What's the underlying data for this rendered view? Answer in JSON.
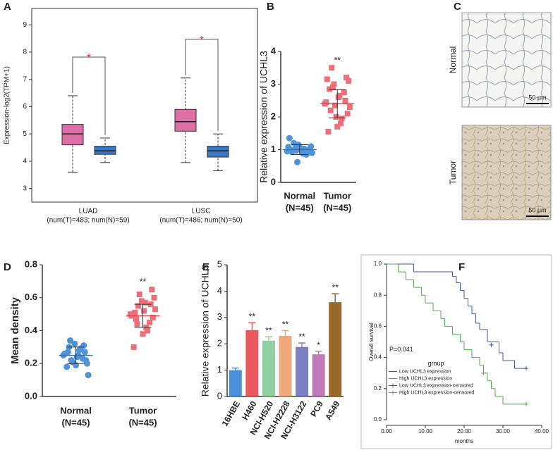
{
  "chart_data": [
    {
      "type": "box",
      "panel": "A",
      "ylabel": "Expression-log2(TPM+1)",
      "ylim": [
        2.5,
        9.6
      ],
      "yticks": [
        3,
        4,
        5,
        6,
        7,
        8,
        9
      ],
      "categories": [
        "LUAD",
        "LUSC"
      ],
      "category_labels": [
        "(num(T)=483; num(N)=59)",
        "(num(T)=486; num(N)=50)"
      ],
      "series": [
        {
          "color": "#dd6fa6",
          "boxes": [
            {
              "min": 3.6,
              "q1": 4.6,
              "median": 5.0,
              "q3": 5.35,
              "max": 6.4
            },
            {
              "min": 3.95,
              "q1": 5.1,
              "median": 5.45,
              "q3": 5.9,
              "max": 7.05
            }
          ]
        },
        {
          "color": "#3b78c2",
          "boxes": [
            {
              "min": 3.95,
              "q1": 4.25,
              "median": 4.38,
              "q3": 4.55,
              "max": 4.85
            },
            {
              "min": 3.65,
              "q1": 4.15,
              "median": 4.38,
              "q3": 4.55,
              "max": 5.0
            }
          ]
        }
      ],
      "annotations": [
        "*",
        "*"
      ],
      "annotation_color": "#e8303a"
    },
    {
      "type": "dot",
      "panel": "B",
      "ylabel": "Relative expression of UCHL3",
      "ylim": [
        0,
        4
      ],
      "yticks": [
        0,
        1,
        2,
        3,
        4
      ],
      "categories": [
        "Normal",
        "Tumor"
      ],
      "category_labels": [
        "(N=45)",
        "(N=45)"
      ],
      "series": [
        {
          "color": "#4f93d8",
          "mean": 1.0,
          "sd": 0.15,
          "points": [
            0.95,
            1.02,
            0.88,
            1.1,
            0.98,
            1.05,
            0.92,
            1.0,
            1.15,
            0.85,
            1.08,
            0.97,
            1.03,
            0.9,
            1.2,
            0.96,
            1.01,
            0.93,
            1.06,
            0.99,
            1.35,
            0.62
          ]
        },
        {
          "color": "#ef6f78",
          "mean": 2.4,
          "sd": 0.43,
          "points": [
            2.4,
            2.9,
            1.8,
            3.1,
            2.2,
            2.6,
            3.2,
            1.55,
            2.0,
            2.75,
            2.45,
            3.0,
            1.95,
            2.3,
            3.5,
            2.65,
            2.1,
            2.85,
            1.7,
            2.5,
            3.15,
            2.35
          ]
        }
      ],
      "annotations": [
        null,
        "**"
      ]
    },
    {
      "type": "image",
      "panel": "C",
      "title": "UCHL3",
      "rows": [
        "Normal",
        "Tumor"
      ],
      "scale_bar": "50 μm"
    },
    {
      "type": "dot",
      "panel": "D",
      "ylabel": "Mean density",
      "ylim": [
        0,
        0.8
      ],
      "yticks": [
        {
          "value": 0,
          "label": "0.0"
        },
        {
          "value": 0.2,
          "label": "0.2"
        },
        {
          "value": 0.4,
          "label": "0.4"
        },
        {
          "value": 0.6,
          "label": "0.6"
        },
        {
          "value": 0.8,
          "label": "0.8"
        }
      ],
      "categories": [
        "Normal",
        "Tumor"
      ],
      "category_labels": [
        "(N=45)",
        "(N=45)"
      ],
      "series": [
        {
          "color": "#4f93d8",
          "mean": 0.25,
          "sd": 0.05,
          "points": [
            0.25,
            0.22,
            0.28,
            0.2,
            0.3,
            0.24,
            0.27,
            0.18,
            0.32,
            0.23,
            0.26,
            0.21,
            0.29,
            0.13,
            0.34,
            0.25,
            0.22,
            0.27,
            0.19,
            0.31
          ]
        },
        {
          "color": "#ef6f78",
          "mean": 0.49,
          "sd": 0.07,
          "points": [
            0.5,
            0.55,
            0.42,
            0.6,
            0.47,
            0.52,
            0.65,
            0.3,
            0.58,
            0.45,
            0.49,
            0.62,
            0.4,
            0.53,
            0.44,
            0.57,
            0.48,
            0.51,
            0.38,
            0.56
          ]
        }
      ],
      "annotations": [
        null,
        "**"
      ]
    },
    {
      "type": "bar",
      "panel": "E",
      "ylabel": "Relative expression of UCHL3",
      "ylim": [
        0,
        5
      ],
      "yticks": [
        0,
        1,
        2,
        3,
        4,
        5
      ],
      "categories": [
        "16HBE",
        "H460",
        "NCI-H520",
        "NCI-H2228",
        "NCI-H3122",
        "PC9",
        "A549"
      ],
      "values": [
        1.0,
        2.52,
        2.12,
        2.3,
        1.88,
        1.6,
        3.58
      ],
      "errors": [
        0.08,
        0.28,
        0.15,
        0.2,
        0.15,
        0.12,
        0.32
      ],
      "colors": [
        "#4a90d9",
        "#e8585c",
        "#8fd1a0",
        "#f0a87a",
        "#7b7fc4",
        "#c07ab8",
        "#9a6a2a"
      ],
      "annotations": [
        null,
        "**",
        "**",
        "**",
        "**",
        "*",
        "**"
      ]
    },
    {
      "type": "survival",
      "panel": "F",
      "xlabel": "months",
      "ylabel": "Overall survival",
      "annotation": "P=0.041",
      "legend_title": "group",
      "xlim": [
        0,
        40
      ],
      "xticks": [
        {
          "value": 0,
          "label": "0.00"
        },
        {
          "value": 10,
          "label": "10.00"
        },
        {
          "value": 20,
          "label": "20.00"
        },
        {
          "value": 30,
          "label": "30.00"
        },
        {
          "value": 40,
          "label": "40.00"
        }
      ],
      "ylim": [
        0,
        1
      ],
      "yticks": [
        {
          "value": 0,
          "label": "0.0"
        },
        {
          "value": 0.2,
          "label": "0.2"
        },
        {
          "value": 0.4,
          "label": "0.4"
        },
        {
          "value": 0.6,
          "label": "0.6"
        },
        {
          "value": 0.8,
          "label": "0.8"
        },
        {
          "value": 1,
          "label": "1.0"
        }
      ],
      "series": [
        {
          "name": "Low UCHL3 expression",
          "color": "#3d55c8",
          "x": [
            0,
            7,
            17,
            18,
            19,
            20,
            21,
            22,
            23,
            24,
            26,
            29,
            30,
            33,
            36
          ],
          "values": [
            1.0,
            0.95,
            0.92,
            0.88,
            0.83,
            0.78,
            0.73,
            0.68,
            0.62,
            0.58,
            0.5,
            0.43,
            0.38,
            0.33,
            0.33
          ]
        },
        {
          "name": "High UCHL3 expression",
          "color": "#4fae4a",
          "x": [
            0,
            3,
            5,
            7,
            9,
            10,
            12,
            14,
            15,
            17,
            19,
            20,
            22,
            24,
            25,
            26,
            27,
            28,
            30,
            36
          ],
          "values": [
            1.0,
            0.95,
            0.9,
            0.85,
            0.8,
            0.75,
            0.7,
            0.65,
            0.6,
            0.55,
            0.5,
            0.45,
            0.4,
            0.35,
            0.3,
            0.25,
            0.2,
            0.15,
            0.1,
            0.1
          ]
        },
        {
          "name": "Low UCHL3 expression-censored",
          "color": "#3d55c8",
          "marker": "+",
          "x": [
            27,
            36
          ],
          "values": [
            0.48,
            0.33
          ]
        },
        {
          "name": "High UCHL3 expression-censored",
          "color": "#4fae4a",
          "marker": "+",
          "x": [
            25,
            36
          ],
          "values": [
            0.3,
            0.1
          ]
        }
      ]
    }
  ]
}
